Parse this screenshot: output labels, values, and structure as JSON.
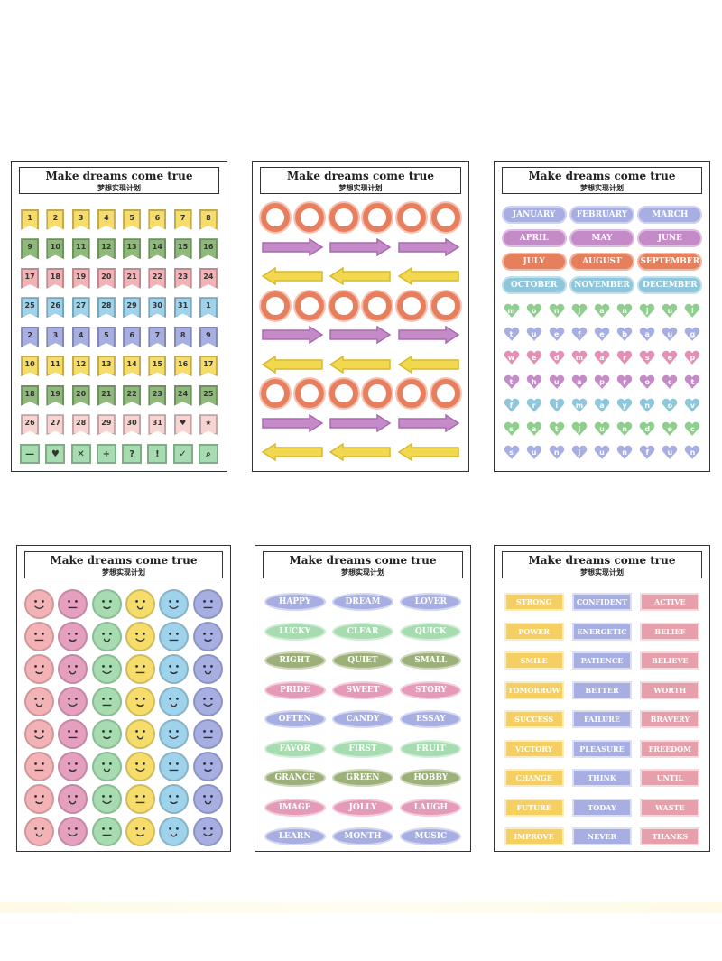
{
  "header_text": "",
  "sheet_title": "Make dreams come true",
  "sheet_subtitle": "梦想实现计划",
  "colors": {
    "yellow": "#f6dc6b",
    "green": "#8fb97a",
    "pink": "#f2b2b6",
    "blue": "#9fd3ec",
    "lavender": "#a7aee2",
    "orange": "#e57f5c",
    "purple": "#c58bc8",
    "teal": "#8ec6dc",
    "mint": "#a6dcb0",
    "olive": "#9eb07a",
    "rose": "#e5a0ab",
    "violet": "#b7a6dd"
  },
  "sheet1": {
    "rows": [
      {
        "color": "#f6dc6b",
        "items": [
          "1",
          "2",
          "3",
          "4",
          "5",
          "6",
          "7",
          "8"
        ]
      },
      {
        "color": "#8fb97a",
        "items": [
          "9",
          "10",
          "11",
          "12",
          "13",
          "14",
          "15",
          "16"
        ]
      },
      {
        "color": "#f2b2b6",
        "items": [
          "17",
          "18",
          "19",
          "20",
          "21",
          "22",
          "23",
          "24"
        ]
      },
      {
        "color": "#9fd3ec",
        "items": [
          "25",
          "26",
          "27",
          "28",
          "29",
          "30",
          "31",
          "1"
        ]
      },
      {
        "color": "#a7aee2",
        "items": [
          "2",
          "3",
          "4",
          "5",
          "6",
          "7",
          "8",
          "9"
        ]
      },
      {
        "color": "#f6dc6b",
        "items": [
          "10",
          "11",
          "12",
          "13",
          "14",
          "15",
          "16",
          "17"
        ]
      },
      {
        "color": "#8fb97a",
        "items": [
          "18",
          "19",
          "20",
          "21",
          "22",
          "23",
          "24",
          "25"
        ]
      },
      {
        "color": "#f7d4d2",
        "items": [
          "26",
          "27",
          "28",
          "29",
          "30",
          "31",
          "♥",
          "★"
        ]
      },
      {
        "color": "#a6dcb0",
        "items": [
          "—",
          "♥",
          "✕",
          "+",
          "?",
          "!",
          "✓",
          "⌕"
        ]
      }
    ]
  },
  "sheet2": {
    "rows": [
      "ring",
      "arrow-right",
      "arrow-left",
      "ring",
      "arrow-right",
      "arrow-left",
      "ring",
      "arrow-right",
      "arrow-left"
    ]
  },
  "sheet3": {
    "months": [
      {
        "label": "JANUARY",
        "color": "#a7aee2"
      },
      {
        "label": "FEBRUARY",
        "color": "#a7aee2"
      },
      {
        "label": "MARCH",
        "color": "#a7aee2"
      },
      {
        "label": "APRIL",
        "color": "#c58bc8"
      },
      {
        "label": "MAY",
        "color": "#c58bc8"
      },
      {
        "label": "JUNE",
        "color": "#c58bc8"
      },
      {
        "label": "JULY",
        "color": "#e57f5c"
      },
      {
        "label": "AUGUST",
        "color": "#e57f5c"
      },
      {
        "label": "SEPTEMBER",
        "color": "#e57f5c"
      },
      {
        "label": "OCTOBER",
        "color": "#8ec6dc"
      },
      {
        "label": "NOVEMBER",
        "color": "#8ec6dc"
      },
      {
        "label": "DECEMBER",
        "color": "#8ec6dc"
      }
    ],
    "days": [
      {
        "color": "#8fcf8d",
        "letters": [
          "m",
          "o",
          "n",
          "j",
          "a",
          "n",
          "j",
          "u",
          "l"
        ]
      },
      {
        "color": "#a7aee2",
        "letters": [
          "t",
          "u",
          "e",
          "f",
          "e",
          "b",
          "a",
          "u",
          "g"
        ]
      },
      {
        "color": "#e58fb6",
        "letters": [
          "w",
          "e",
          "d",
          "m",
          "a",
          "r",
          "s",
          "e",
          "p"
        ]
      },
      {
        "color": "#c58bc8",
        "letters": [
          "t",
          "h",
          "u",
          "a",
          "p",
          "r",
          "o",
          "c",
          "t"
        ]
      },
      {
        "color": "#8ec6dc",
        "letters": [
          "f",
          "r",
          "i",
          "m",
          "a",
          "y",
          "n",
          "o",
          "v"
        ]
      },
      {
        "color": "#8fcf8d",
        "letters": [
          "s",
          "a",
          "t",
          "j",
          "u",
          "n",
          "d",
          "e",
          "c"
        ]
      },
      {
        "color": "#a7aee2",
        "letters": [
          "s",
          "u",
          "n",
          "j",
          "u",
          "n",
          "f",
          "u",
          "n"
        ]
      }
    ]
  },
  "sheet4": {
    "colors": [
      "#f2b2b6",
      "#e5a0c0",
      "#a6dcb0",
      "#f6dc6b",
      "#9fd3ec",
      "#a7aee2"
    ],
    "rows": 8
  },
  "sheet5": {
    "rows": [
      {
        "color": "#a7aee2",
        "items": [
          "HAPPY",
          "DREAM",
          "LOVER"
        ]
      },
      {
        "color": "#a6dcb0",
        "items": [
          "LUCKY",
          "CLEAR",
          "QUICK"
        ]
      },
      {
        "color": "#9eb07a",
        "items": [
          "RIGHT",
          "QUIET",
          "SMALL"
        ]
      },
      {
        "color": "#e59bb8",
        "items": [
          "PRIDE",
          "SWEET",
          "STORY"
        ]
      },
      {
        "color": "#a7aee2",
        "items": [
          "OFTEN",
          "CANDY",
          "ESSAY"
        ]
      },
      {
        "color": "#a6dcb0",
        "items": [
          "FAVOR",
          "FIRST",
          "FRUIT"
        ]
      },
      {
        "color": "#9eb07a",
        "items": [
          "GRANCE",
          "GREEN",
          "HOBBY"
        ]
      },
      {
        "color": "#e59bb8",
        "items": [
          "IMAGE",
          "JOLLY",
          "LAUGH"
        ]
      },
      {
        "color": "#a7aee2",
        "items": [
          "LEARN",
          "MONTH",
          "MUSIC"
        ]
      }
    ]
  },
  "sheet6": {
    "column_colors": [
      "#f6cf62",
      "#a7aee2",
      "#e5a0ab"
    ],
    "rows": [
      [
        "STRONG",
        "CONFIDENT",
        "ACTIVE"
      ],
      [
        "POWER",
        "ENERGETIC",
        "BELIEF"
      ],
      [
        "SMILE",
        "PATIENCE",
        "BELIEVE"
      ],
      [
        "TOMORROW",
        "BETTER",
        "WORTH"
      ],
      [
        "SUCCESS",
        "FAILURE",
        "BRAVERY"
      ],
      [
        "VICTORY",
        "PLEASURE",
        "FREEDOM"
      ],
      [
        "CHANGE",
        "THINK",
        "UNTIL"
      ],
      [
        "FUTURE",
        "TODAY",
        "WASTE"
      ],
      [
        "IMPROVE",
        "NEVER",
        "THANKS"
      ]
    ]
  }
}
